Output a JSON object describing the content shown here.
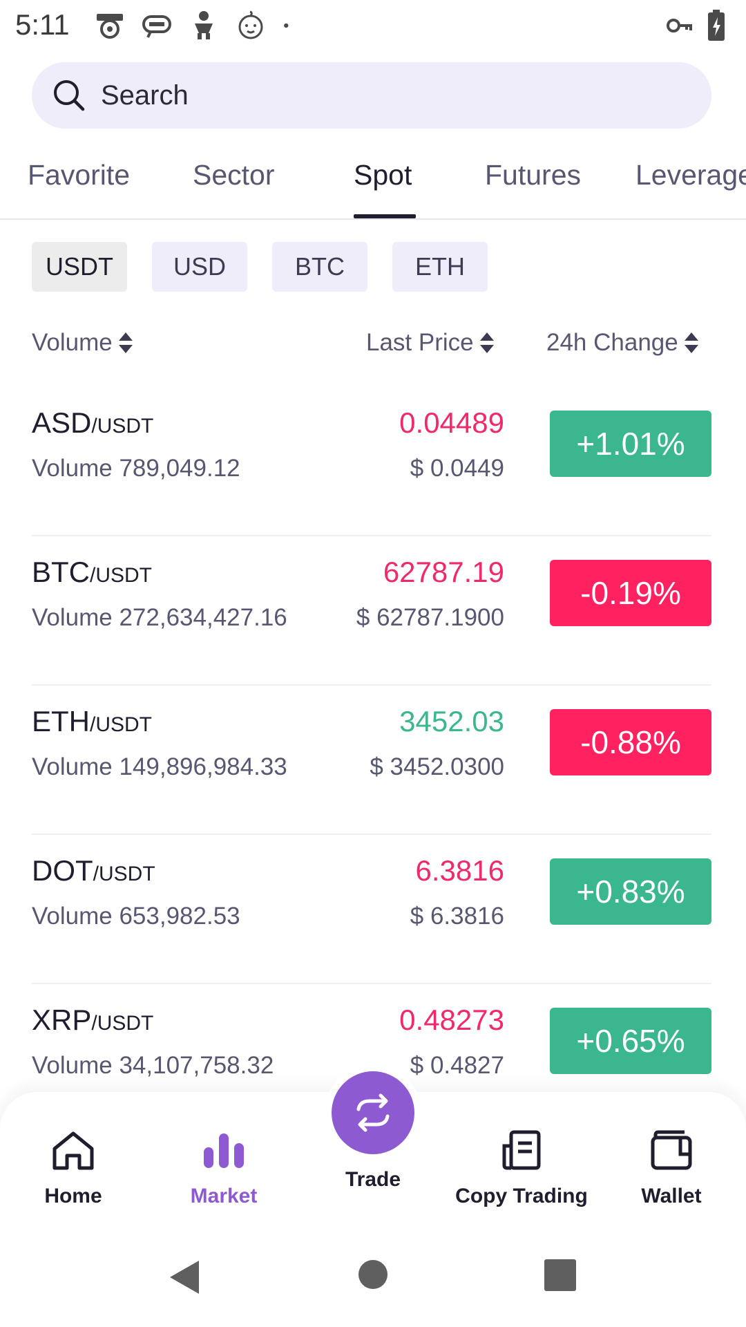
{
  "status_bar": {
    "time": "5:11"
  },
  "search": {
    "placeholder": "Search"
  },
  "tabs": [
    {
      "label": "Favorite",
      "active": false
    },
    {
      "label": "Sector",
      "active": false
    },
    {
      "label": "Spot",
      "active": true
    },
    {
      "label": "Futures",
      "active": false
    },
    {
      "label": "Leverage",
      "active": false
    }
  ],
  "quote_chips": [
    {
      "label": "USDT",
      "active": true
    },
    {
      "label": "USD",
      "active": false
    },
    {
      "label": "BTC",
      "active": false
    },
    {
      "label": "ETH",
      "active": false
    }
  ],
  "columns": {
    "volume": "Volume",
    "last_price": "Last Price",
    "change": "24h Change"
  },
  "rows": [
    {
      "base": "ASD",
      "quote": "/USDT",
      "volume": "Volume 789,049.12",
      "price": "0.04489",
      "price_color": "#f0296a",
      "fiat": "$ 0.0449",
      "change": "+1.01%",
      "change_color": "#3bb78f"
    },
    {
      "base": "BTC",
      "quote": "/USDT",
      "volume": "Volume 272,634,427.16",
      "price": "62787.19",
      "price_color": "#f0296a",
      "fiat": "$ 62787.1900",
      "change": "-0.19%",
      "change_color": "#ff2160"
    },
    {
      "base": "ETH",
      "quote": "/USDT",
      "volume": "Volume 149,896,984.33",
      "price": "3452.03",
      "price_color": "#3bb78f",
      "fiat": "$ 3452.0300",
      "change": "-0.88%",
      "change_color": "#ff2160"
    },
    {
      "base": "DOT",
      "quote": "/USDT",
      "volume": "Volume 653,982.53",
      "price": "6.3816",
      "price_color": "#f0296a",
      "fiat": "$ 6.3816",
      "change": "+0.83%",
      "change_color": "#3bb78f"
    },
    {
      "base": "XRP",
      "quote": "/USDT",
      "volume": "Volume 34,107,758.32",
      "price": "0.48273",
      "price_color": "#f0296a",
      "fiat": "$ 0.4827",
      "change": "+0.65%",
      "change_color": "#3bb78f"
    }
  ],
  "bottom_nav": {
    "home": "Home",
    "market": "Market",
    "trade": "Trade",
    "copy_trading": "Copy Trading",
    "wallet": "Wallet",
    "active": "market"
  },
  "colors": {
    "accent": "#8e5ad1",
    "up": "#3bb78f",
    "down": "#ff2160"
  },
  "icons": [
    "search-icon",
    "sort-icon",
    "home-icon",
    "market-icon",
    "trade-swap-icon",
    "copy-trading-icon",
    "wallet-icon",
    "back-icon",
    "home-circle-icon",
    "recents-icon"
  ]
}
